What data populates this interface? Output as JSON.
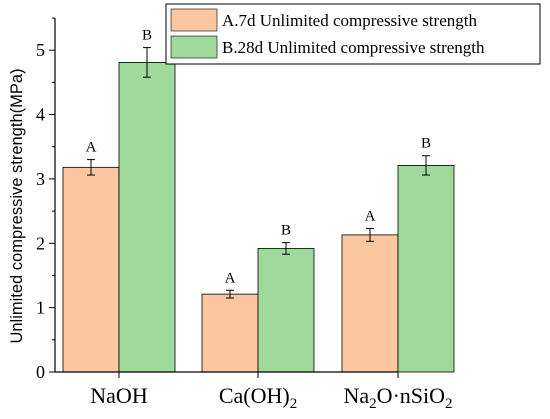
{
  "chart_data": {
    "type": "bar",
    "categories": [
      "NaOH",
      "Ca(OH)2",
      "Na2O·nSiO2"
    ],
    "series": [
      {
        "name": "A.7d Unlimited compressive strength",
        "letter": "A",
        "color": "#fbc7a0",
        "values": [
          3.18,
          1.21,
          2.13
        ],
        "errors": [
          0.12,
          0.06,
          0.1
        ]
      },
      {
        "name": "B.28d Unlimited compressive strength",
        "letter": "B",
        "color": "#9fd99c",
        "values": [
          4.81,
          1.92,
          3.21
        ],
        "errors": [
          0.23,
          0.09,
          0.15
        ]
      }
    ],
    "xlabel": "",
    "ylabel": "Unlimited compressive strength(MPa)",
    "ylim": [
      0,
      5.5
    ],
    "yticks": [
      "0",
      "1",
      "2",
      "3",
      "4",
      "5"
    ],
    "legend_position": "top-right",
    "grid": false
  }
}
